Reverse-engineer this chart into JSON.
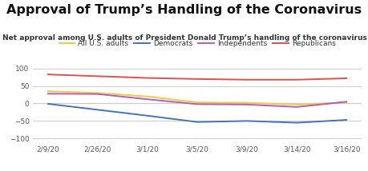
{
  "title": "Approval of Trump’s Handling of the Coronavirus",
  "subtitle": "Net approval among U.S. adults of President Donald Trump’s handling of the coronavirus",
  "x_labels": [
    "2/9/20",
    "2/26/20",
    "3/1/20",
    "3/5/20",
    "3/9/20",
    "3/14/20",
    "3/16/20"
  ],
  "x_values": [
    0,
    1,
    2,
    3,
    4,
    5,
    6
  ],
  "series": {
    "All U.S. adults": {
      "color": "#f5c842",
      "values": [
        35,
        30,
        20,
        3,
        2,
        -3,
        3
      ]
    },
    "Democrats": {
      "color": "#4472c4",
      "values": [
        -1,
        -18,
        -35,
        -53,
        -50,
        -55,
        -47
      ]
    },
    "Independents": {
      "color": "#b060b8",
      "values": [
        28,
        27,
        12,
        -2,
        -3,
        -10,
        5
      ]
    },
    "Republicans": {
      "color": "#e05050",
      "values": [
        83,
        78,
        73,
        70,
        68,
        68,
        72
      ]
    }
  },
  "ylim": [
    -110,
    115
  ],
  "yticks": [
    -100,
    -50,
    0,
    50,
    100
  ],
  "background_color": "#ffffff",
  "grid_color": "#cccccc",
  "title_fontsize": 11.5,
  "subtitle_fontsize": 6.5,
  "legend_fontsize": 6.5,
  "tick_fontsize": 6.5
}
